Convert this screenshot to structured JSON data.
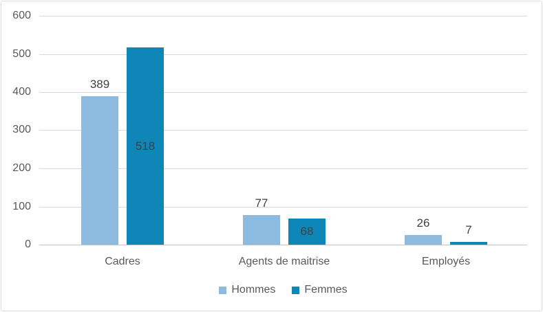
{
  "chart_data": {
    "type": "bar",
    "title": "",
    "categories": [
      "Cadres",
      "Agents de maitrise",
      "Employés"
    ],
    "series": [
      {
        "name": "Hommes",
        "color": "#8cbbdf",
        "values": [
          389,
          77,
          26
        ]
      },
      {
        "name": "Femmes",
        "color": "#0f86b8",
        "values": [
          518,
          68,
          7
        ]
      }
    ],
    "data_labels": {
      "hommes": [
        "389",
        "77",
        "26"
      ],
      "femmes": [
        "518",
        "68",
        "7"
      ],
      "color": "#404040"
    },
    "ylim": [
      0,
      600
    ],
    "yticks": [
      "0",
      "100",
      "200",
      "300",
      "400",
      "500",
      "600"
    ],
    "grid": true,
    "legend_position": "bottom",
    "theme": {
      "axis_text_color": "#595959",
      "gridline_color": "#d9d9d9",
      "baseline_color": "#c3c3c3",
      "border_color": "#dcdcdc",
      "background": "#ffffff"
    }
  }
}
